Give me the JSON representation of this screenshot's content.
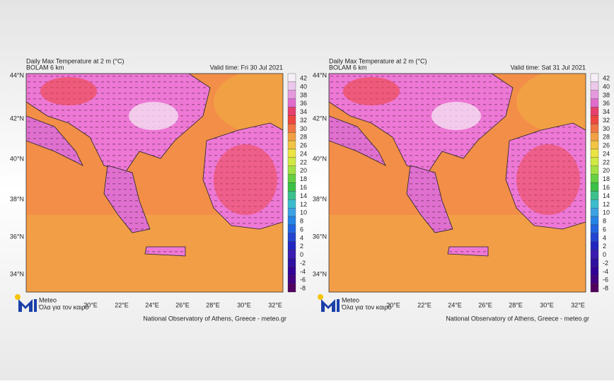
{
  "panels": [
    {
      "title": "Daily Max Temperature at 2 m (°C)",
      "model": "BOLAM 6 km",
      "valid_time": "Valid time: Fri 30 Jul 2021"
    },
    {
      "title": "Daily Max Temperature at 2 m (°C)",
      "model": "BOLAM 6 km",
      "valid_time": "Valid time: Sat 31 Jul 2021"
    }
  ],
  "lat_labels": [
    "44°N",
    "42°N",
    "40°N",
    "38°N",
    "36°N",
    "34°N"
  ],
  "lon_labels": [
    "20°E",
    "22°E",
    "24°E",
    "26°E",
    "28°E",
    "30°E",
    "32°E"
  ],
  "colorbar": {
    "levels": [
      42,
      40,
      38,
      36,
      34,
      32,
      30,
      28,
      26,
      24,
      22,
      20,
      18,
      16,
      14,
      12,
      10,
      8,
      6,
      4,
      2,
      0,
      -2,
      -4,
      -6,
      -8
    ],
    "colors": [
      "#f6eef6",
      "#ecc8ec",
      "#e69ade",
      "#e06ccc",
      "#e8406e",
      "#ee4640",
      "#f07444",
      "#f2a044",
      "#f2c444",
      "#ece444",
      "#cfe844",
      "#a2e044",
      "#66d044",
      "#3cc048",
      "#3cc08c",
      "#3cbccc",
      "#3ca2e4",
      "#2684e4",
      "#2264e0",
      "#2244d0",
      "#2226c0",
      "#3a1cb0",
      "#3010a0",
      "#320094",
      "#420080",
      "#520060"
    ]
  },
  "logo": {
    "name": "Meteo",
    "tagline": "Όλα για τον καιρό"
  },
  "footer": "National Observatory of Athens, Greece - meteo.gr"
}
